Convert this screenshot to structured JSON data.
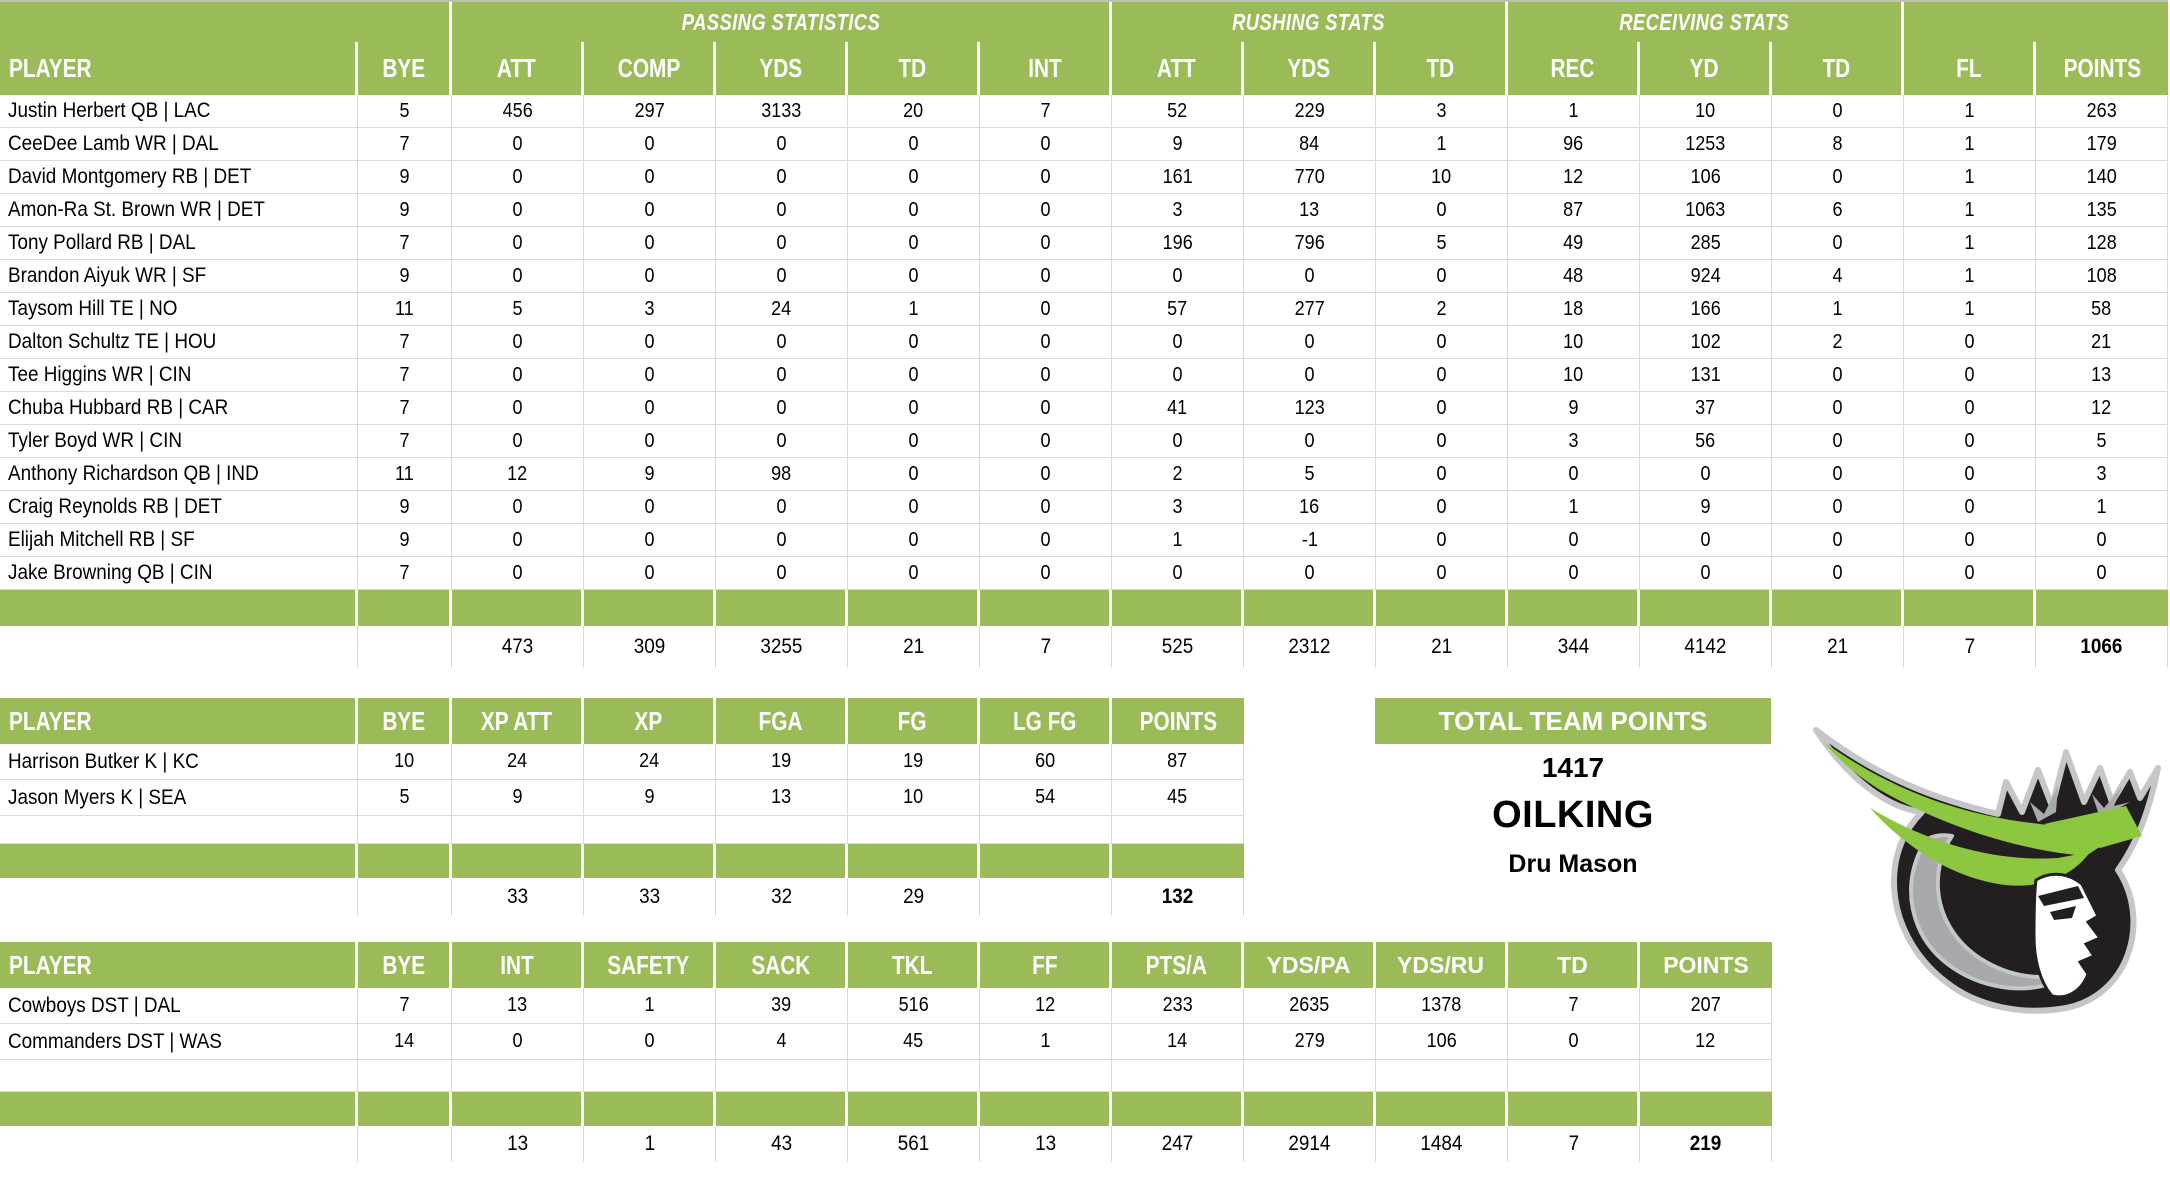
{
  "colors": {
    "header_green": "#9BBB59",
    "logo_green": "#8DC63F",
    "logo_black": "#231F20",
    "logo_gray": "#A7A9AC",
    "grid_line": "#D9D9D9"
  },
  "main_table": {
    "groups": {
      "passing": "PASSING STATISTICS",
      "rushing": "RUSHING STATS",
      "receiving": "RECEIVING STATS"
    },
    "columns": [
      "PLAYER",
      "BYE",
      "ATT",
      "COMP",
      "YDS",
      "TD",
      "INT",
      "ATT",
      "YDS",
      "TD",
      "REC",
      "YD",
      "TD",
      "FL",
      "POINTS"
    ],
    "rows": [
      [
        "Justin Herbert QB | LAC",
        5,
        456,
        297,
        3133,
        20,
        7,
        52,
        229,
        3,
        1,
        10,
        0,
        1,
        263
      ],
      [
        "CeeDee Lamb WR | DAL",
        7,
        0,
        0,
        0,
        0,
        0,
        9,
        84,
        1,
        96,
        1253,
        8,
        1,
        179
      ],
      [
        "David Montgomery RB | DET",
        9,
        0,
        0,
        0,
        0,
        0,
        161,
        770,
        10,
        12,
        106,
        0,
        1,
        140
      ],
      [
        "Amon-Ra St. Brown WR | DET",
        9,
        0,
        0,
        0,
        0,
        0,
        3,
        13,
        0,
        87,
        1063,
        6,
        1,
        135
      ],
      [
        "Tony Pollard RB | DAL",
        7,
        0,
        0,
        0,
        0,
        0,
        196,
        796,
        5,
        49,
        285,
        0,
        1,
        128
      ],
      [
        "Brandon Aiyuk WR | SF",
        9,
        0,
        0,
        0,
        0,
        0,
        0,
        0,
        0,
        48,
        924,
        4,
        1,
        108
      ],
      [
        "Taysom Hill TE | NO",
        11,
        5,
        3,
        24,
        1,
        0,
        57,
        277,
        2,
        18,
        166,
        1,
        1,
        58
      ],
      [
        "Dalton Schultz TE | HOU",
        7,
        0,
        0,
        0,
        0,
        0,
        0,
        0,
        0,
        10,
        102,
        2,
        0,
        21
      ],
      [
        "Tee Higgins WR | CIN",
        7,
        0,
        0,
        0,
        0,
        0,
        0,
        0,
        0,
        10,
        131,
        0,
        0,
        13
      ],
      [
        "Chuba Hubbard RB | CAR",
        7,
        0,
        0,
        0,
        0,
        0,
        41,
        123,
        0,
        9,
        37,
        0,
        0,
        12
      ],
      [
        "Tyler Boyd WR | CIN",
        7,
        0,
        0,
        0,
        0,
        0,
        0,
        0,
        0,
        3,
        56,
        0,
        0,
        5
      ],
      [
        "Anthony Richardson QB | IND",
        11,
        12,
        9,
        98,
        0,
        0,
        2,
        5,
        0,
        0,
        0,
        0,
        0,
        3
      ],
      [
        "Craig Reynolds RB | DET",
        9,
        0,
        0,
        0,
        0,
        0,
        3,
        16,
        0,
        1,
        9,
        0,
        0,
        1
      ],
      [
        "Elijah Mitchell RB | SF",
        9,
        0,
        0,
        0,
        0,
        0,
        1,
        -1,
        0,
        0,
        0,
        0,
        0,
        0
      ],
      [
        "Jake Browning QB | CIN",
        7,
        0,
        0,
        0,
        0,
        0,
        0,
        0,
        0,
        0,
        0,
        0,
        0,
        0
      ]
    ],
    "totals": [
      "",
      "",
      473,
      309,
      3255,
      21,
      7,
      525,
      2312,
      21,
      344,
      4142,
      21,
      7,
      1066
    ]
  },
  "kicker_table": {
    "columns": [
      "PLAYER",
      "BYE",
      "XP ATT",
      "XP",
      "FGA",
      "FG",
      "LG FG",
      "POINTS"
    ],
    "rows": [
      [
        "Harrison Butker K | KC",
        10,
        24,
        24,
        19,
        19,
        60,
        87
      ],
      [
        "Jason Myers K | SEA",
        5,
        9,
        9,
        13,
        10,
        54,
        45
      ]
    ],
    "totals": [
      "",
      "",
      33,
      33,
      32,
      29,
      "",
      132
    ]
  },
  "dst_table": {
    "columns": [
      "PLAYER",
      "BYE",
      "INT",
      "SAFETY",
      "SACK",
      "TKL",
      "FF",
      "PTS/A",
      "YDS/PA",
      "YDS/RU",
      "TD",
      "POINTS"
    ],
    "alt_header_from": 8,
    "rows": [
      [
        "Cowboys DST | DAL",
        7,
        13,
        1,
        39,
        516,
        12,
        233,
        2635,
        1378,
        7,
        207
      ],
      [
        "Commanders DST | WAS",
        14,
        0,
        0,
        4,
        45,
        1,
        14,
        279,
        106,
        0,
        12
      ]
    ],
    "totals": [
      "",
      "",
      13,
      1,
      43,
      561,
      13,
      247,
      2914,
      1484,
      7,
      219
    ]
  },
  "team_summary": {
    "banner": "TOTAL TEAM POINTS",
    "total_points": "1417",
    "team_name": "OILKING",
    "owner": "Dru Mason"
  }
}
